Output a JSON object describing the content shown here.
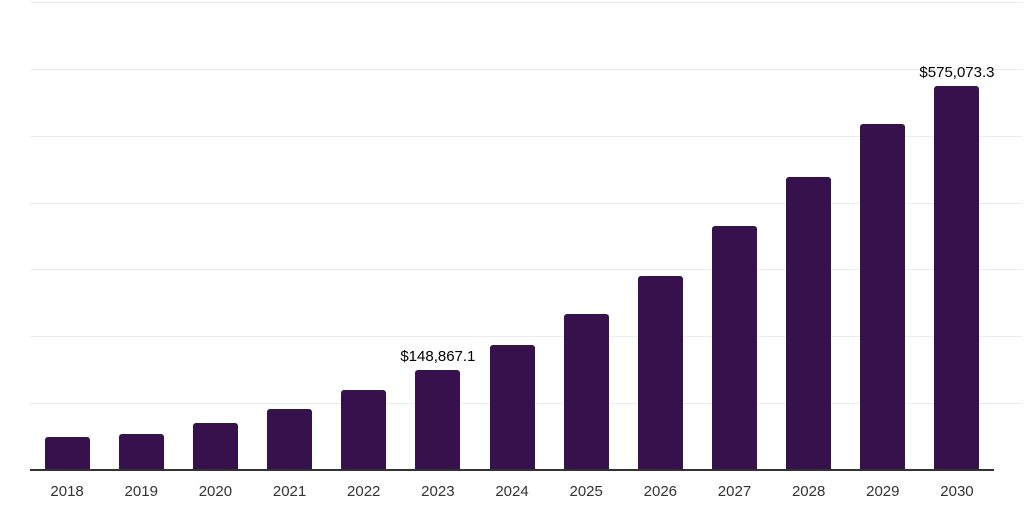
{
  "chart": {
    "background_color": "#ffffff",
    "bar_color": "#36114b",
    "gridline_color": "#ededed",
    "axis_line_color": "#333333",
    "value_label_color": "#000000",
    "tick_label_color": "#333333"
  },
  "chart_data": {
    "type": "bar",
    "title": "",
    "xlabel": "",
    "ylabel": "",
    "categories": [
      "2018",
      "2019",
      "2020",
      "2021",
      "2022",
      "2023",
      "2024",
      "2025",
      "2026",
      "2027",
      "2028",
      "2029",
      "2030"
    ],
    "values": [
      50100,
      54000,
      69800,
      90700,
      119500,
      148867.1,
      186300,
      233200,
      290500,
      365200,
      438500,
      517300,
      575073.3
    ],
    "data_labels": [
      "",
      "",
      "",
      "",
      "",
      "$148,867.1",
      "",
      "",
      "",
      "",
      "",
      "",
      "$575,073.3"
    ],
    "ylim": [
      0,
      700000
    ],
    "gridlines": {
      "visible": true,
      "interval": 100000,
      "orientation": "horizontal"
    },
    "legend": "none",
    "y_axis_labels_visible": false,
    "notes": "Only 2023 and 2030 bars carry data labels; remaining values estimated from gridlines (100,000 per division, axis max 700,000)."
  }
}
